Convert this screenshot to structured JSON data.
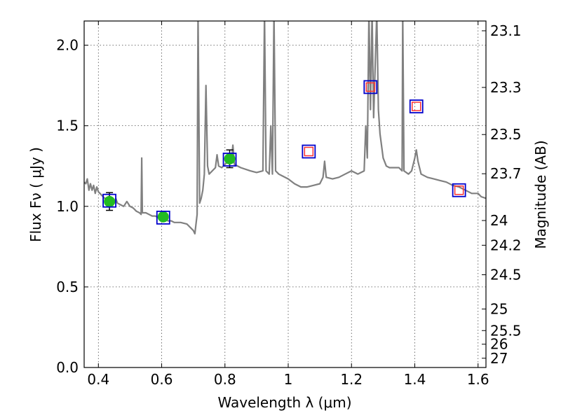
{
  "chart_data": {
    "type": "scatter",
    "xlabel": "Wavelength  λ (μm)",
    "ylabel": "Flux  Fν  ( μJy )",
    "ylabel_right": "Magnitude (AB)",
    "xlim": [
      0.355,
      1.625
    ],
    "ylim": [
      0.0,
      2.15
    ],
    "grid": true,
    "x_ticks": [
      {
        "value": 0.4,
        "label": "0.4"
      },
      {
        "value": 0.6,
        "label": "0.6"
      },
      {
        "value": 0.8,
        "label": "0.8"
      },
      {
        "value": 1.0,
        "label": "1"
      },
      {
        "value": 1.2,
        "label": "1.2"
      },
      {
        "value": 1.4,
        "label": "1.4"
      },
      {
        "value": 1.6,
        "label": "1.6"
      }
    ],
    "y_ticks": [
      {
        "value": 0.0,
        "label": "0.0"
      },
      {
        "value": 0.5,
        "label": "0.5"
      },
      {
        "value": 1.0,
        "label": "1.0"
      },
      {
        "value": 1.5,
        "label": "1.5"
      },
      {
        "value": 2.0,
        "label": "2.0"
      }
    ],
    "magnitude_ticks": [
      {
        "value": 23.1,
        "label": "23.1"
      },
      {
        "value": 23.3,
        "label": "23.3"
      },
      {
        "value": 23.5,
        "label": "23.5"
      },
      {
        "value": 23.7,
        "label": "23.7"
      },
      {
        "value": 24.0,
        "label": "24"
      },
      {
        "value": 24.2,
        "label": "24.2"
      },
      {
        "value": 24.5,
        "label": "24.5"
      },
      {
        "value": 25.0,
        "label": "25"
      },
      {
        "value": 25.5,
        "label": "25.5"
      },
      {
        "value": 26.0,
        "label": "26"
      },
      {
        "value": 27.0,
        "label": "27"
      }
    ],
    "model_spectrum": {
      "color": "#808080",
      "points": [
        [
          0.355,
          1.15
        ],
        [
          0.36,
          1.14
        ],
        [
          0.365,
          1.17
        ],
        [
          0.37,
          1.1
        ],
        [
          0.375,
          1.14
        ],
        [
          0.38,
          1.1
        ],
        [
          0.385,
          1.13
        ],
        [
          0.39,
          1.08
        ],
        [
          0.395,
          1.12
        ],
        [
          0.4,
          1.09
        ],
        [
          0.405,
          1.08
        ],
        [
          0.41,
          1.07
        ],
        [
          0.42,
          1.05
        ],
        [
          0.43,
          1.04
        ],
        [
          0.44,
          1.03
        ],
        [
          0.45,
          1.02
        ],
        [
          0.455,
          1.05
        ],
        [
          0.46,
          1.02
        ],
        [
          0.47,
          1.01
        ],
        [
          0.48,
          1.0
        ],
        [
          0.49,
          1.03
        ],
        [
          0.5,
          1.0
        ],
        [
          0.51,
          0.99
        ],
        [
          0.52,
          0.97
        ],
        [
          0.53,
          0.96
        ],
        [
          0.535,
          0.95
        ],
        [
          0.537,
          1.3
        ],
        [
          0.539,
          0.96
        ],
        [
          0.55,
          0.96
        ],
        [
          0.56,
          0.95
        ],
        [
          0.57,
          0.94
        ],
        [
          0.58,
          0.94
        ],
        [
          0.59,
          0.93
        ],
        [
          0.6,
          0.93
        ],
        [
          0.61,
          0.92
        ],
        [
          0.62,
          0.91
        ],
        [
          0.63,
          0.91
        ],
        [
          0.64,
          0.9
        ],
        [
          0.66,
          0.9
        ],
        [
          0.68,
          0.89
        ],
        [
          0.7,
          0.85
        ],
        [
          0.705,
          0.83
        ],
        [
          0.712,
          0.95
        ],
        [
          0.715,
          2.2
        ],
        [
          0.72,
          1.02
        ],
        [
          0.725,
          1.05
        ],
        [
          0.73,
          1.1
        ],
        [
          0.735,
          1.2
        ],
        [
          0.74,
          1.75
        ],
        [
          0.745,
          1.25
        ],
        [
          0.75,
          1.2
        ],
        [
          0.76,
          1.22
        ],
        [
          0.77,
          1.24
        ],
        [
          0.775,
          1.32
        ],
        [
          0.78,
          1.25
        ],
        [
          0.79,
          1.24
        ],
        [
          0.8,
          1.26
        ],
        [
          0.81,
          1.28
        ],
        [
          0.815,
          1.3
        ],
        [
          0.82,
          1.27
        ],
        [
          0.825,
          1.38
        ],
        [
          0.83,
          1.26
        ],
        [
          0.85,
          1.24
        ],
        [
          0.88,
          1.22
        ],
        [
          0.9,
          1.21
        ],
        [
          0.92,
          1.22
        ],
        [
          0.925,
          2.2
        ],
        [
          0.93,
          1.22
        ],
        [
          0.94,
          1.2
        ],
        [
          0.945,
          1.5
        ],
        [
          0.95,
          1.2
        ],
        [
          0.955,
          2.2
        ],
        [
          0.96,
          1.22
        ],
        [
          0.97,
          1.2
        ],
        [
          0.98,
          1.19
        ],
        [
          1.0,
          1.17
        ],
        [
          1.02,
          1.14
        ],
        [
          1.04,
          1.12
        ],
        [
          1.06,
          1.12
        ],
        [
          1.08,
          1.13
        ],
        [
          1.1,
          1.14
        ],
        [
          1.11,
          1.18
        ],
        [
          1.115,
          1.28
        ],
        [
          1.12,
          1.18
        ],
        [
          1.14,
          1.17
        ],
        [
          1.16,
          1.18
        ],
        [
          1.18,
          1.2
        ],
        [
          1.2,
          1.22
        ],
        [
          1.22,
          1.2
        ],
        [
          1.23,
          1.21
        ],
        [
          1.24,
          1.22
        ],
        [
          1.245,
          1.5
        ],
        [
          1.25,
          1.3
        ],
        [
          1.255,
          2.2
        ],
        [
          1.26,
          1.6
        ],
        [
          1.265,
          2.2
        ],
        [
          1.27,
          1.55
        ],
        [
          1.28,
          2.2
        ],
        [
          1.285,
          1.6
        ],
        [
          1.29,
          1.45
        ],
        [
          1.3,
          1.3
        ],
        [
          1.31,
          1.25
        ],
        [
          1.32,
          1.24
        ],
        [
          1.34,
          1.24
        ],
        [
          1.35,
          1.24
        ],
        [
          1.36,
          1.22
        ],
        [
          1.362,
          2.2
        ],
        [
          1.366,
          1.22
        ],
        [
          1.38,
          1.2
        ],
        [
          1.39,
          1.22
        ],
        [
          1.4,
          1.3
        ],
        [
          1.405,
          1.35
        ],
        [
          1.41,
          1.28
        ],
        [
          1.42,
          1.2
        ],
        [
          1.44,
          1.18
        ],
        [
          1.46,
          1.17
        ],
        [
          1.48,
          1.16
        ],
        [
          1.5,
          1.15
        ],
        [
          1.52,
          1.13
        ],
        [
          1.54,
          1.12
        ],
        [
          1.56,
          1.1
        ],
        [
          1.58,
          1.08
        ],
        [
          1.6,
          1.08
        ],
        [
          1.61,
          1.06
        ],
        [
          1.625,
          1.05
        ]
      ]
    },
    "series": [
      {
        "marker": "circle",
        "color": "#22bb22",
        "points": [
          {
            "x": 0.435,
            "y": 1.03,
            "err": 0.055
          },
          {
            "x": 0.605,
            "y": 0.935,
            "err": 0.02
          },
          {
            "x": 0.815,
            "y": 1.295,
            "err": 0.055
          }
        ]
      },
      {
        "marker": "square-outline",
        "color": "#0000cc",
        "points": [
          {
            "x": 0.435,
            "y": 1.035
          },
          {
            "x": 0.605,
            "y": 0.93
          },
          {
            "x": 0.815,
            "y": 1.29
          },
          {
            "x": 1.065,
            "y": 1.34
          },
          {
            "x": 1.26,
            "y": 1.74
          },
          {
            "x": 1.405,
            "y": 1.62
          },
          {
            "x": 1.54,
            "y": 1.1
          }
        ]
      },
      {
        "marker": "square-outline-small",
        "color": "#ff3333",
        "points": [
          {
            "x": 1.065,
            "y": 1.34
          },
          {
            "x": 1.26,
            "y": 1.74
          },
          {
            "x": 1.405,
            "y": 1.62
          },
          {
            "x": 1.54,
            "y": 1.1
          }
        ]
      }
    ]
  }
}
